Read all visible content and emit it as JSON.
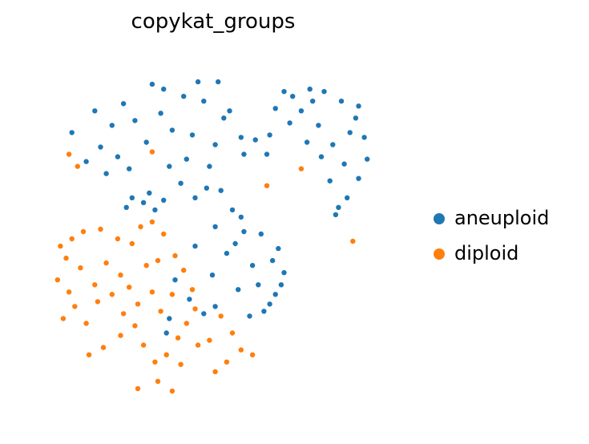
{
  "chart_data": {
    "type": "scatter",
    "title": "copykat_groups",
    "xlabel": "",
    "ylabel": "",
    "axes_visible": false,
    "grid": false,
    "legend_placement": "right",
    "series": [
      {
        "name": "aneuploid",
        "color": "#1f77b4",
        "points": [
          [
            1.0,
            4.3
          ],
          [
            1.5,
            3.1
          ],
          [
            2.0,
            3.7
          ],
          [
            2.4,
            4.6
          ],
          [
            2.8,
            5.5
          ],
          [
            3.2,
            4.8
          ],
          [
            3.6,
            3.9
          ],
          [
            4.1,
            5.1
          ],
          [
            4.5,
            4.4
          ],
          [
            4.9,
            5.8
          ],
          [
            5.2,
            4.2
          ],
          [
            5.6,
            5.6
          ],
          [
            6.0,
            3.8
          ],
          [
            6.3,
            4.9
          ],
          [
            6.9,
            4.1
          ],
          [
            1.8,
            5.2
          ],
          [
            3.8,
            6.3
          ],
          [
            4.2,
            6.1
          ],
          [
            2.6,
            3.3
          ],
          [
            5.4,
            6.4
          ],
          [
            6.1,
            6.4
          ],
          [
            6.5,
            5.2
          ],
          [
            7.0,
            3.4
          ],
          [
            7.4,
            4.0
          ],
          [
            7.8,
            3.4
          ],
          [
            3.0,
            2.8
          ],
          [
            4.4,
            2.9
          ],
          [
            5.0,
            3.2
          ],
          [
            5.8,
            2.9
          ],
          [
            2.2,
            2.6
          ],
          [
            8.1,
            5.3
          ],
          [
            8.7,
            5.8
          ],
          [
            9.3,
            6.1
          ],
          [
            9.8,
            6.0
          ],
          [
            10.4,
            5.6
          ],
          [
            10.9,
            4.9
          ],
          [
            11.2,
            4.1
          ],
          [
            11.3,
            3.2
          ],
          [
            11.0,
            2.4
          ],
          [
            10.6,
            1.6
          ],
          [
            10.2,
            0.9
          ],
          [
            9.0,
            5.2
          ],
          [
            9.6,
            4.6
          ],
          [
            10.1,
            3.8
          ],
          [
            10.5,
            3.0
          ],
          [
            9.2,
            3.9
          ],
          [
            9.7,
            3.3
          ],
          [
            10.0,
            2.3
          ],
          [
            10.3,
            1.2
          ],
          [
            8.6,
            4.7
          ],
          [
            11.0,
            5.4
          ],
          [
            9.4,
            5.6
          ],
          [
            8.4,
            6.0
          ],
          [
            7.9,
            4.2
          ],
          [
            10.7,
            4.3
          ],
          [
            4.8,
            2.2
          ],
          [
            5.3,
            1.6
          ],
          [
            5.7,
            2.0
          ],
          [
            6.2,
            1.9
          ],
          [
            6.6,
            1.1
          ],
          [
            6.0,
            0.4
          ],
          [
            6.9,
            0.8
          ],
          [
            7.6,
            0.1
          ],
          [
            8.2,
            -0.5
          ],
          [
            8.4,
            -1.5
          ],
          [
            8.1,
            -2.4
          ],
          [
            7.7,
            -3.1
          ],
          [
            7.3,
            -1.2
          ],
          [
            6.7,
            -0.3
          ],
          [
            7.5,
            -2.0
          ],
          [
            8.0,
            -1.0
          ],
          [
            7.0,
            0.2
          ],
          [
            6.4,
            -0.7
          ],
          [
            7.2,
            -3.3
          ],
          [
            6.8,
            -2.2
          ],
          [
            8.3,
            -2.0
          ],
          [
            7.9,
            -2.8
          ],
          [
            3.1,
            1.6
          ],
          [
            3.5,
            1.4
          ],
          [
            3.9,
            1.1
          ],
          [
            4.2,
            1.5
          ],
          [
            2.9,
            1.2
          ],
          [
            3.7,
            1.8
          ],
          [
            5.1,
            -2.6
          ],
          [
            4.6,
            -1.8
          ],
          [
            5.6,
            -3.2
          ],
          [
            4.3,
            -4.0
          ],
          [
            6.0,
            -2.9
          ],
          [
            5.9,
            -1.6
          ],
          [
            5.3,
            -0.4
          ],
          [
            4.4,
            -3.4
          ]
        ]
      },
      {
        "name": "diploid",
        "color": "#ff7f0e",
        "points": [
          [
            0.6,
            -0.4
          ],
          [
            1.0,
            -0.1
          ],
          [
            1.4,
            0.2
          ],
          [
            2.0,
            0.3
          ],
          [
            2.6,
            -0.1
          ],
          [
            3.1,
            -0.3
          ],
          [
            3.4,
            0.4
          ],
          [
            0.8,
            -0.9
          ],
          [
            1.3,
            -1.3
          ],
          [
            2.2,
            -1.1
          ],
          [
            2.7,
            -1.6
          ],
          [
            0.5,
            -1.8
          ],
          [
            0.9,
            -2.3
          ],
          [
            1.8,
            -2.0
          ],
          [
            3.0,
            -2.1
          ],
          [
            1.1,
            -2.9
          ],
          [
            1.9,
            -2.7
          ],
          [
            2.4,
            -2.4
          ],
          [
            0.7,
            -3.4
          ],
          [
            1.5,
            -3.6
          ],
          [
            2.8,
            -3.2
          ],
          [
            3.3,
            -2.8
          ],
          [
            3.6,
            -1.2
          ],
          [
            3.8,
            -2.3
          ],
          [
            4.1,
            -3.1
          ],
          [
            4.5,
            -2.4
          ],
          [
            4.0,
            -1.0
          ],
          [
            4.6,
            -0.8
          ],
          [
            4.2,
            0.1
          ],
          [
            3.8,
            0.6
          ],
          [
            4.9,
            -1.4
          ],
          [
            5.2,
            -2.2
          ],
          [
            5.3,
            -3.0
          ],
          [
            5.0,
            -3.6
          ],
          [
            4.7,
            -4.2
          ],
          [
            4.3,
            -4.9
          ],
          [
            3.9,
            -5.2
          ],
          [
            3.5,
            -4.5
          ],
          [
            3.2,
            -3.7
          ],
          [
            2.7,
            -4.1
          ],
          [
            2.1,
            -4.6
          ],
          [
            1.6,
            -4.9
          ],
          [
            4.8,
            -5.3
          ],
          [
            5.4,
            -4.5
          ],
          [
            4.0,
            -6.0
          ],
          [
            3.3,
            -6.3
          ],
          [
            4.5,
            -6.4
          ],
          [
            6.2,
            -3.3
          ],
          [
            6.6,
            -4.0
          ],
          [
            6.9,
            -4.7
          ],
          [
            7.3,
            -4.9
          ],
          [
            6.4,
            -5.2
          ],
          [
            5.8,
            -4.3
          ],
          [
            6.0,
            -5.6
          ],
          [
            7.8,
            2.1
          ],
          [
            10.8,
            -0.2
          ],
          [
            9.0,
            2.8
          ],
          [
            3.8,
            3.5
          ],
          [
            1.2,
            2.9
          ],
          [
            0.9,
            3.4
          ]
        ]
      }
    ]
  },
  "legend": {
    "aneuploid_label": "aneuploid",
    "diploid_label": "diploid",
    "aneuploid_color": "#1f77b4",
    "diploid_color": "#ff7f0e"
  }
}
